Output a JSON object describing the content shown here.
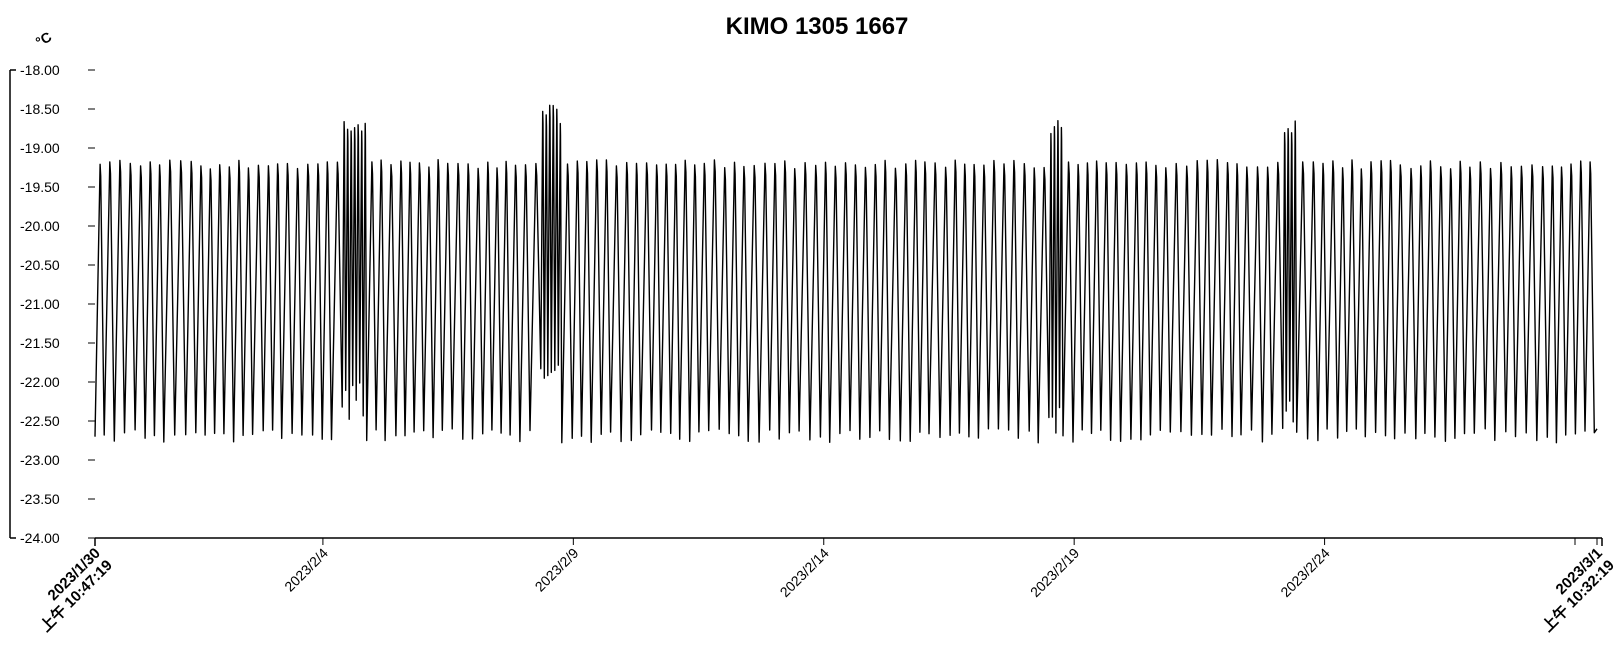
{
  "chart_data": {
    "type": "line",
    "title": "KIMO 1305 1667",
    "ylabel": "°C",
    "xlabel": "",
    "ylim": [
      -24.0,
      -18.0
    ],
    "y_ticks": [
      "-18.00",
      "-18.50",
      "-19.00",
      "-19.50",
      "-20.00",
      "-20.50",
      "-21.00",
      "-21.50",
      "-22.00",
      "-22.50",
      "-23.00",
      "-23.50",
      "-24.00"
    ],
    "x_start": "2023-01-30T10:47:19",
    "x_end": "2023-03-01T10:32:19",
    "x_ticks": [
      {
        "date": "2023-01-30T10:47:19",
        "line1": "2023/1/30",
        "line2": "上午 10:47:19"
      },
      {
        "date": "2023-02-04T00:00:00",
        "line1": "2023/2/4"
      },
      {
        "date": "2023-02-09T00:00:00",
        "line1": "2023/2/9"
      },
      {
        "date": "2023-02-14T00:00:00",
        "line1": "2023/2/14"
      },
      {
        "date": "2023-02-19T00:00:00",
        "line1": "2023/2/19"
      },
      {
        "date": "2023-02-24T00:00:00",
        "line1": "2023/2/24"
      },
      {
        "date": "2023-03-01T00:00:00",
        "line1": "2023/3/1"
      },
      {
        "date": "2023-03-01T10:32:19",
        "line1": "2023/3/1",
        "line2": "上午 10:32:19"
      }
    ],
    "grid": false,
    "legend": "none",
    "series": [
      {
        "color": "#000000",
        "typical_range": [
          -22.6,
          -19.15
        ],
        "cycles_per_day": 5,
        "dense_segments": [
          {
            "start": "2023-02-08T05:00:00",
            "end": "2023-02-08T17:00:00",
            "max": -18.7,
            "min": -21.6
          },
          {
            "start": "2023-02-04T09:00:00",
            "end": "2023-02-04T20:00:00",
            "max": -18.85,
            "min": -22.0
          },
          {
            "start": "2023-02-18T08:00:00",
            "end": "2023-02-18T17:00:00",
            "max": -18.82,
            "min": -22.3
          },
          {
            "start": "2023-02-23T02:00:00",
            "end": "2023-02-23T09:00:00",
            "max": -18.9,
            "min": -22.2
          }
        ]
      }
    ]
  }
}
